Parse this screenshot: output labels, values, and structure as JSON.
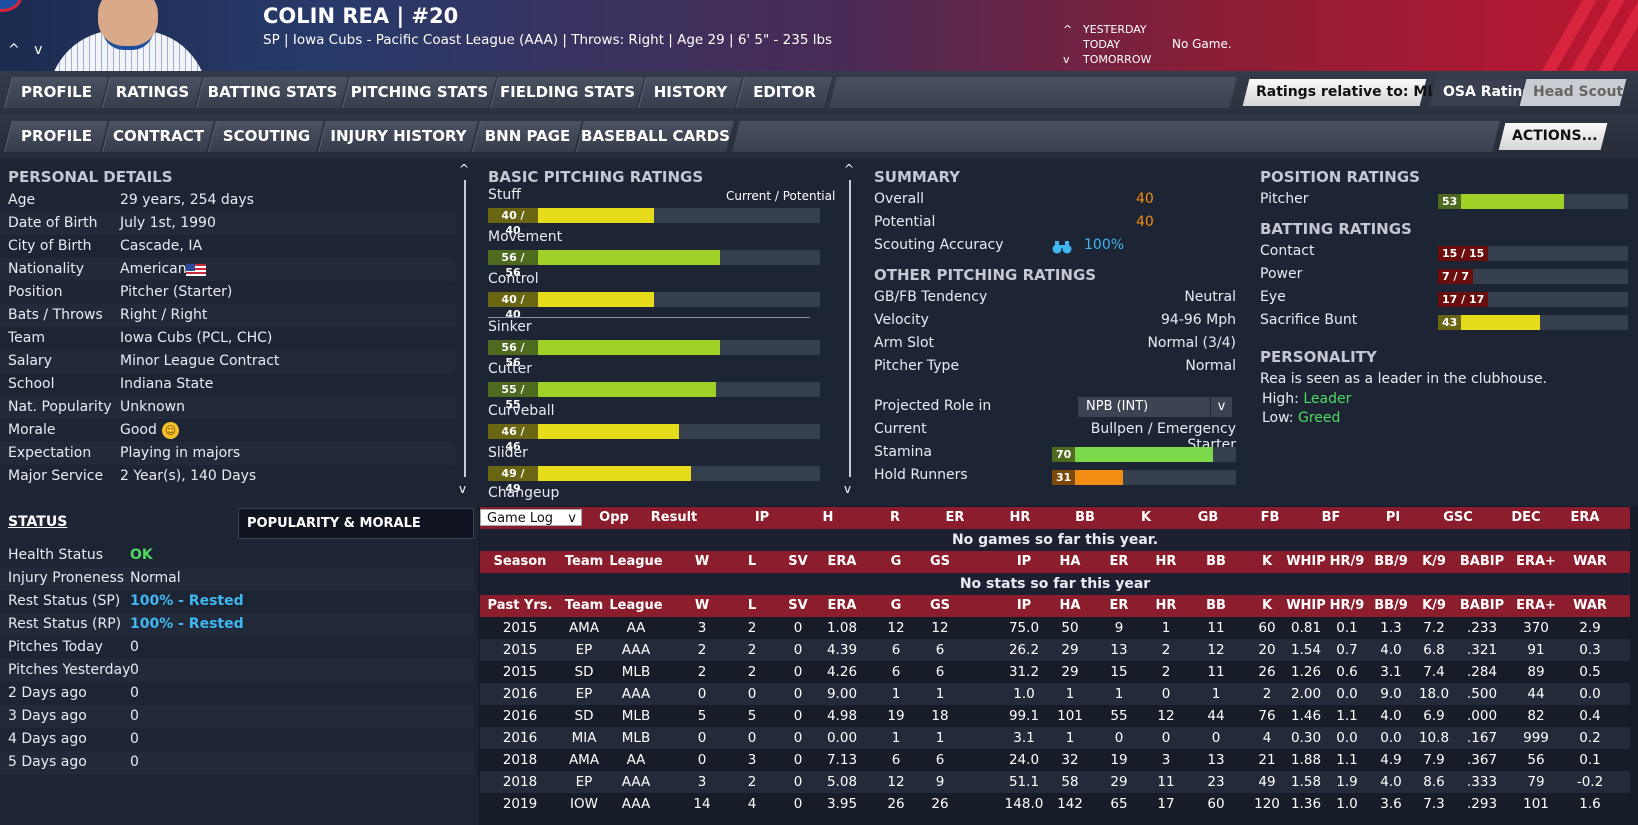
{
  "header": {
    "name": "COLIN REA",
    "separator": "|",
    "number": "#20",
    "info": "SP | Iowa Cubs - Pacific Coast League (AAA)  |  Throws: Right  |  Age 29  |  6' 5\" - 235 lbs",
    "nav_up": "^ v",
    "day_labels": [
      "YESTERDAY",
      "TODAY",
      "TOMORROW"
    ],
    "day_carets": [
      "^",
      "",
      "v"
    ],
    "no_game": "No Game."
  },
  "tabs1": [
    "PROFILE",
    "RATINGS",
    "BATTING STATS",
    "PITCHING STATS",
    "FIELDING STATS",
    "HISTORY",
    "EDITOR"
  ],
  "tabs2": [
    "PROFILE",
    "CONTRACT",
    "SCOUTING",
    "INJURY HISTORY",
    "BNN PAGE",
    "BASEBALL CARDS"
  ],
  "controls": {
    "ratings_relative": "Ratings relative to: MLB",
    "osa": "OSA Ratings",
    "head_scout": "Head Scout",
    "actions": "ACTIONS...",
    "chevron": "v"
  },
  "personal": {
    "title": "PERSONAL DETAILS",
    "rows": [
      [
        "Age",
        "29 years, 254 days"
      ],
      [
        "Date of Birth",
        "July 1st, 1990"
      ],
      [
        "City of Birth",
        "Cascade, IA"
      ],
      [
        "Nationality",
        "American"
      ],
      [
        "Position",
        "Pitcher (Starter)"
      ],
      [
        "Bats / Throws",
        "Right / Right"
      ],
      [
        "Team",
        "Iowa Cubs (PCL, CHC)"
      ],
      [
        "Salary",
        "Minor League Contract"
      ],
      [
        "School",
        "Indiana State"
      ],
      [
        "Nat. Popularity",
        "Unknown"
      ],
      [
        "Morale",
        "Good"
      ],
      [
        "Expectation",
        "Playing in majors"
      ],
      [
        "Major Service",
        "2 Year(s), 140 Days"
      ]
    ]
  },
  "status": {
    "title": "STATUS",
    "tab": "POPULARITY & MORALE",
    "rows": [
      [
        "Health Status",
        "OK"
      ],
      [
        "Injury Proneness",
        "Normal"
      ],
      [
        "Rest Status (SP)",
        "100% - Rested"
      ],
      [
        "Rest Status (RP)",
        "100% - Rested"
      ],
      [
        "Pitches Today",
        "0"
      ],
      [
        "Pitches Yesterday",
        "0"
      ],
      [
        "2 Days ago",
        "0"
      ],
      [
        "3 Days ago",
        "0"
      ],
      [
        "4 Days ago",
        "0"
      ],
      [
        "5 Days ago",
        "0"
      ]
    ]
  },
  "pitching": {
    "title": "BASIC PITCHING RATINGS",
    "legend": "Current / Potential",
    "items": [
      {
        "name": "Stuff",
        "label": "40 / 40",
        "value": 40
      },
      {
        "name": "Movement",
        "label": "56 / 56",
        "value": 56
      },
      {
        "name": "Control",
        "label": "40 / 40",
        "value": 40
      },
      {
        "name": "Sinker",
        "label": "56 / 56",
        "value": 56
      },
      {
        "name": "Cutter",
        "label": "55 / 55",
        "value": 55
      },
      {
        "name": "Curveball",
        "label": "46 / 46",
        "value": 46
      },
      {
        "name": "Slider",
        "label": "49 / 49",
        "value": 49
      }
    ],
    "partial": "Changeup"
  },
  "summary": {
    "title": "SUMMARY",
    "overall_k": "Overall",
    "overall": "40",
    "potential_k": "Potential",
    "potential": "40",
    "accuracy_k": "Scouting Accuracy",
    "accuracy": "100%",
    "other_title": "OTHER PITCHING RATINGS",
    "other": [
      [
        "GB/FB Tendency",
        "Neutral"
      ],
      [
        "Velocity",
        "94-96 Mph"
      ],
      [
        "Arm Slot",
        "Normal (3/4)"
      ],
      [
        "Pitcher Type",
        "Normal"
      ]
    ],
    "proj_k": "Projected Role in",
    "proj_v": "NPB (INT)",
    "current_k": "Current",
    "current_v": "Bullpen / Emergency Starter",
    "stamina_k": "Stamina",
    "stamina": 70,
    "hold_k": "Hold Runners",
    "hold": 31
  },
  "position": {
    "title": "POSITION RATINGS",
    "pitcher_k": "Pitcher",
    "pitcher": 53,
    "batting_title": "BATTING RATINGS",
    "batting": [
      {
        "name": "Contact",
        "label": "15 / 15",
        "value": 15
      },
      {
        "name": "Power",
        "label": "7 / 7",
        "value": 7
      },
      {
        "name": "Eye",
        "label": "17 / 17",
        "value": 17
      },
      {
        "name": "Sacrifice Bunt",
        "label": "43",
        "value": 43
      }
    ],
    "personality_title": "PERSONALITY",
    "personality_text": "Rea is seen as a leader in the clubhouse.",
    "high_k": "High:",
    "high_v": "Leader",
    "low_k": "Low:",
    "low_v": "Greed"
  },
  "gamelog": {
    "select": "Game Log",
    "headers": [
      "Opp",
      "Result",
      "IP",
      "H",
      "R",
      "ER",
      "HR",
      "BB",
      "K",
      "GB",
      "FB",
      "BF",
      "PI",
      "GSC",
      "DEC",
      "ERA"
    ],
    "empty": "No games so far this year."
  },
  "season": {
    "headers": [
      "Season",
      "Team",
      "League",
      "W",
      "L",
      "SV",
      "ERA",
      "G",
      "GS",
      "IP",
      "HA",
      "ER",
      "HR",
      "BB",
      "K",
      "WHIP",
      "HR/9",
      "BB/9",
      "K/9",
      "BABIP",
      "ERA+",
      "WAR"
    ],
    "empty": "No stats so far this year"
  },
  "past": {
    "headers": [
      "Past Yrs.",
      "Team",
      "League",
      "W",
      "L",
      "SV",
      "ERA",
      "G",
      "GS",
      "IP",
      "HA",
      "ER",
      "HR",
      "BB",
      "K",
      "WHIP",
      "HR/9",
      "BB/9",
      "K/9",
      "BABIP",
      "ERA+",
      "WAR"
    ],
    "rows": [
      [
        "2015",
        "AMA",
        "AA",
        "3",
        "2",
        "0",
        "1.08",
        "12",
        "12",
        "75.0",
        "50",
        "9",
        "1",
        "11",
        "60",
        "0.81",
        "0.1",
        "1.3",
        "7.2",
        ".233",
        "370",
        "2.9"
      ],
      [
        "2015",
        "EP",
        "AAA",
        "2",
        "2",
        "0",
        "4.39",
        "6",
        "6",
        "26.2",
        "29",
        "13",
        "2",
        "12",
        "20",
        "1.54",
        "0.7",
        "4.0",
        "6.8",
        ".321",
        "91",
        "0.3"
      ],
      [
        "2015",
        "SD",
        "MLB",
        "2",
        "2",
        "0",
        "4.26",
        "6",
        "6",
        "31.2",
        "29",
        "15",
        "2",
        "11",
        "26",
        "1.26",
        "0.6",
        "3.1",
        "7.4",
        ".284",
        "89",
        "0.5"
      ],
      [
        "2016",
        "EP",
        "AAA",
        "0",
        "0",
        "0",
        "9.00",
        "1",
        "1",
        "1.0",
        "1",
        "1",
        "0",
        "1",
        "2",
        "2.00",
        "0.0",
        "9.0",
        "18.0",
        ".500",
        "44",
        "0.0"
      ],
      [
        "2016",
        "SD",
        "MLB",
        "5",
        "5",
        "0",
        "4.98",
        "19",
        "18",
        "99.1",
        "101",
        "55",
        "12",
        "44",
        "76",
        "1.46",
        "1.1",
        "4.0",
        "6.9",
        ".000",
        "82",
        "0.4"
      ],
      [
        "2016",
        "MIA",
        "MLB",
        "0",
        "0",
        "0",
        "0.00",
        "1",
        "1",
        "3.1",
        "1",
        "0",
        "0",
        "0",
        "4",
        "0.30",
        "0.0",
        "0.0",
        "10.8",
        ".167",
        "999",
        "0.2"
      ],
      [
        "2018",
        "AMA",
        "AA",
        "0",
        "3",
        "0",
        "7.13",
        "6",
        "6",
        "24.0",
        "32",
        "19",
        "3",
        "13",
        "21",
        "1.88",
        "1.1",
        "4.9",
        "7.9",
        ".367",
        "56",
        "0.1"
      ],
      [
        "2018",
        "EP",
        "AAA",
        "3",
        "2",
        "0",
        "5.08",
        "12",
        "9",
        "51.1",
        "58",
        "29",
        "11",
        "23",
        "49",
        "1.58",
        "1.9",
        "4.0",
        "8.6",
        ".333",
        "79",
        "-0.2"
      ],
      [
        "2019",
        "IOW",
        "AAA",
        "14",
        "4",
        "0",
        "3.95",
        "26",
        "26",
        "148.0",
        "142",
        "65",
        "17",
        "60",
        "120",
        "1.36",
        "1.0",
        "3.6",
        "7.3",
        ".293",
        "101",
        "1.6"
      ]
    ]
  },
  "colors": {
    "green": "#9fd126",
    "yellow": "#e6dc1b",
    "red": "#c71a1a",
    "stamina": "#7bd94b",
    "orange": "#f08d12",
    "accent_orange": "#f08d12",
    "accent_blue": "#3fb7f0",
    "ok_green": "#4ed862",
    "header_red": "#8b1d2c"
  }
}
